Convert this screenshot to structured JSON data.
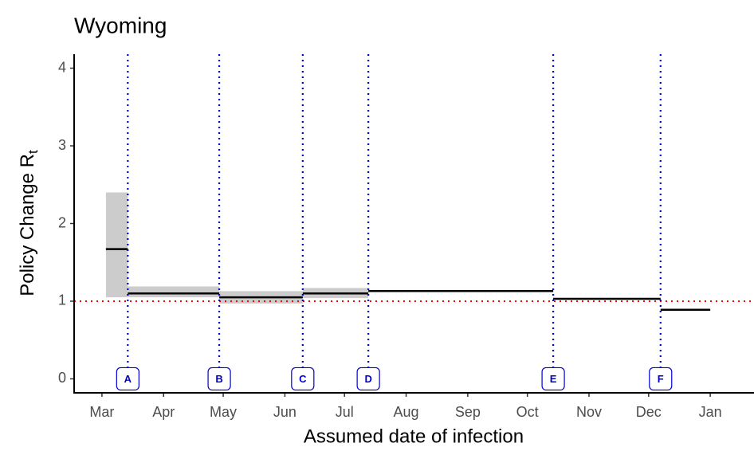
{
  "chart_data": {
    "type": "step",
    "title": "Wyoming",
    "xlabel": "Assumed date of infection",
    "ylabel": "Policy Change R",
    "ylabel_subscript": "t",
    "x_start": [
      2,
      13,
      59,
      101,
      134,
      227,
      281
    ],
    "x_end": [
      13,
      59,
      101,
      134,
      227,
      281,
      306
    ],
    "values": [
      1.67,
      1.1,
      1.05,
      1.1,
      1.13,
      1.03,
      0.89
    ],
    "lower": [
      1.05,
      1.05,
      0.97,
      1.04,
      null,
      null,
      null
    ],
    "upper": [
      2.4,
      1.19,
      1.13,
      1.17,
      null,
      null,
      null
    ],
    "line_color": "black",
    "band_color": "#cccccc",
    "events": {
      "labels": [
        "A",
        "B",
        "C",
        "D",
        "E",
        "F"
      ],
      "x": [
        13,
        59,
        101,
        134,
        227,
        281
      ],
      "color": "#0000cc"
    },
    "reference_line": 1,
    "reference_color": "red",
    "xlim": [
      -14,
      328
    ],
    "ylim": [
      -0.18,
      4.18
    ],
    "xticks": [
      {
        "value": 0,
        "label": "Mar"
      },
      {
        "value": 31,
        "label": "Apr"
      },
      {
        "value": 61,
        "label": "May"
      },
      {
        "value": 92,
        "label": "Jun"
      },
      {
        "value": 122,
        "label": "Jul"
      },
      {
        "value": 153,
        "label": "Aug"
      },
      {
        "value": 184,
        "label": "Sep"
      },
      {
        "value": 214,
        "label": "Oct"
      },
      {
        "value": 245,
        "label": "Nov"
      },
      {
        "value": 275,
        "label": "Dec"
      },
      {
        "value": 306,
        "label": "Jan"
      }
    ],
    "yticks": [
      0,
      1,
      2,
      3,
      4
    ],
    "grid": false
  }
}
